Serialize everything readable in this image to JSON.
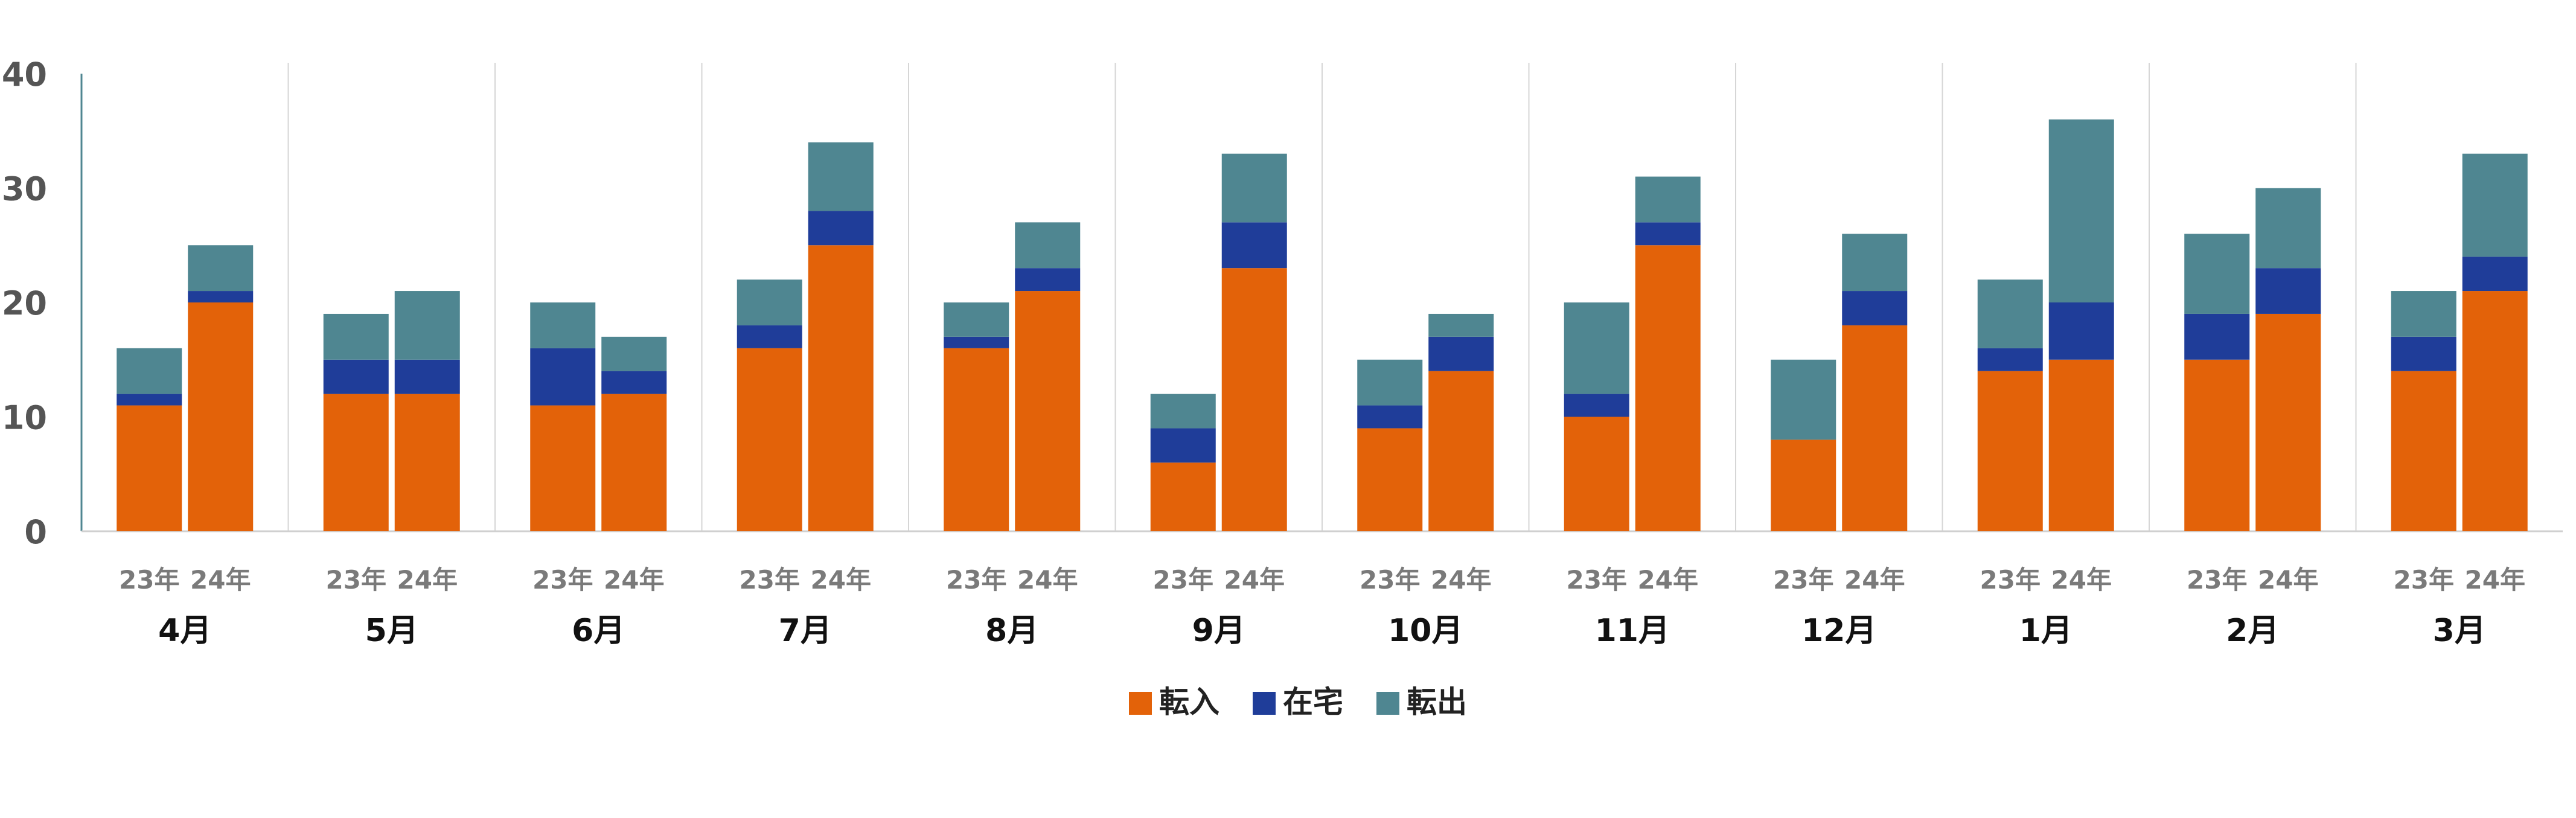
{
  "chart_data": {
    "type": "bar",
    "stacked": true,
    "grouped": true,
    "months": [
      "4月",
      "5月",
      "6月",
      "7月",
      "8月",
      "9月",
      "10月",
      "11月",
      "12月",
      "1月",
      "2月",
      "3月"
    ],
    "years": [
      "23年",
      "24年"
    ],
    "series": [
      {
        "name": "転入",
        "color": "#e36209",
        "values": [
          [
            11,
            20
          ],
          [
            12,
            12
          ],
          [
            11,
            12
          ],
          [
            16,
            25
          ],
          [
            16,
            21
          ],
          [
            6,
            23
          ],
          [
            9,
            14
          ],
          [
            10,
            25
          ],
          [
            8,
            18
          ],
          [
            14,
            15
          ],
          [
            15,
            19
          ],
          [
            14,
            21
          ]
        ]
      },
      {
        "name": "在宅",
        "color": "#1f3d99",
        "values": [
          [
            1,
            1
          ],
          [
            3,
            3
          ],
          [
            5,
            2
          ],
          [
            2,
            3
          ],
          [
            1,
            2
          ],
          [
            3,
            4
          ],
          [
            2,
            3
          ],
          [
            2,
            2
          ],
          [
            0,
            3
          ],
          [
            2,
            5
          ],
          [
            4,
            4
          ],
          [
            3,
            3
          ]
        ]
      },
      {
        "name": "転出",
        "color": "#4f8691",
        "values": [
          [
            4,
            4
          ],
          [
            4,
            6
          ],
          [
            4,
            3
          ],
          [
            4,
            6
          ],
          [
            3,
            4
          ],
          [
            3,
            6
          ],
          [
            4,
            2
          ],
          [
            8,
            4
          ],
          [
            7,
            5
          ],
          [
            6,
            16
          ],
          [
            7,
            7
          ],
          [
            4,
            9
          ]
        ]
      }
    ],
    "ylim": [
      0,
      40
    ],
    "yticks": [
      0,
      10,
      20,
      30,
      40
    ],
    "legend_position": "bottom-center",
    "grid": false
  }
}
